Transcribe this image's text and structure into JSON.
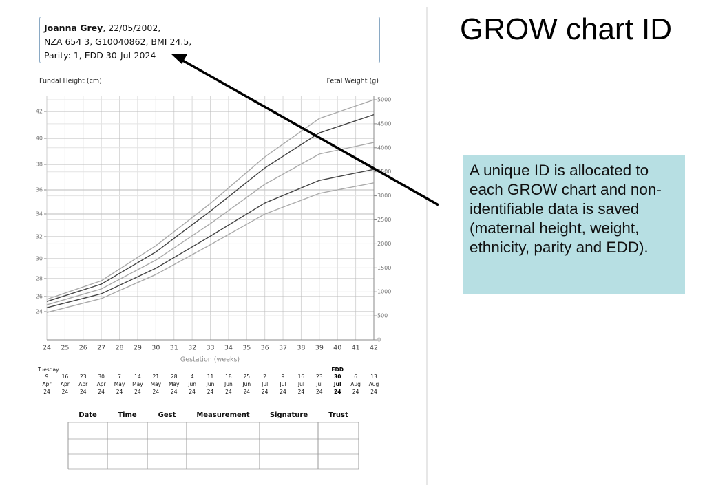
{
  "slide_title": "GROW chart ID",
  "patient": {
    "name": "Joanna Grey",
    "lines": [
      ", 22/05/2002,",
      "NZA 654 3, G10040862, BMI 24.5,",
      "Parity: 1, EDD 30-Jul-2024"
    ]
  },
  "callout": "A unique ID is allocated to each GROW chart and non-identifiable data is saved (maternal height, weight, ethnicity, parity and EDD).",
  "chart_data": {
    "type": "line",
    "ylabel": "Fundal Height (cm)",
    "y2label": "Fetal Weight (g)",
    "xlabel": "Gestation (weeks)",
    "x": [
      24,
      27,
      30,
      33,
      36,
      39,
      42
    ],
    "xlim": [
      24,
      42
    ],
    "xticks": [
      24,
      25,
      26,
      27,
      28,
      29,
      30,
      31,
      32,
      33,
      34,
      35,
      36,
      37,
      38,
      39,
      40,
      41,
      42
    ],
    "yticks": [
      24,
      26,
      28,
      30,
      32,
      34,
      36,
      38,
      40,
      42
    ],
    "y2lim": [
      0,
      5000
    ],
    "y2ticks": [
      0,
      500,
      1000,
      1500,
      2000,
      2500,
      3000,
      3500,
      4000,
      4500,
      5000
    ],
    "grid": true,
    "series": [
      {
        "color": "#aaaaaa",
        "axis": "y2",
        "values": [
          845,
          1230,
          1960,
          2840,
          3810,
          4610,
          5000
        ]
      },
      {
        "color": "#444444",
        "axis": "y2",
        "values": [
          800,
          1160,
          1830,
          2680,
          3580,
          4310,
          4690
        ]
      },
      {
        "color": "#aaaaaa",
        "axis": "y2",
        "values": [
          730,
          1060,
          1660,
          2420,
          3240,
          3870,
          4110
        ]
      },
      {
        "color": "#444444",
        "axis": "y2",
        "values": [
          670,
          960,
          1490,
          2160,
          2850,
          3320,
          3550
        ]
      },
      {
        "color": "#aaaaaa",
        "axis": "y2",
        "values": [
          570,
          860,
          1360,
          1980,
          2620,
          3050,
          3270
        ]
      }
    ],
    "date_caption": "Tuesday...",
    "dates": [
      {
        "day": "9",
        "month": "Apr",
        "year": "24"
      },
      {
        "day": "16",
        "month": "Apr",
        "year": "24"
      },
      {
        "day": "23",
        "month": "Apr",
        "year": "24"
      },
      {
        "day": "30",
        "month": "Apr",
        "year": "24"
      },
      {
        "day": "7",
        "month": "May",
        "year": "24"
      },
      {
        "day": "14",
        "month": "May",
        "year": "24"
      },
      {
        "day": "21",
        "month": "May",
        "year": "24"
      },
      {
        "day": "28",
        "month": "May",
        "year": "24"
      },
      {
        "day": "4",
        "month": "Jun",
        "year": "24"
      },
      {
        "day": "11",
        "month": "Jun",
        "year": "24"
      },
      {
        "day": "18",
        "month": "Jun",
        "year": "24"
      },
      {
        "day": "25",
        "month": "Jun",
        "year": "24"
      },
      {
        "day": "2",
        "month": "Jul",
        "year": "24"
      },
      {
        "day": "9",
        "month": "Jul",
        "year": "24"
      },
      {
        "day": "16",
        "month": "Jul",
        "year": "24"
      },
      {
        "day": "23",
        "month": "Jul",
        "year": "24"
      },
      {
        "day": "30",
        "month": "Jul",
        "year": "24",
        "label": "EDD"
      },
      {
        "day": "6",
        "month": "Aug",
        "year": "24"
      },
      {
        "day": "13",
        "month": "Aug",
        "year": "24"
      }
    ]
  },
  "table": {
    "columns": [
      "Date",
      "Time",
      "Gest",
      "Measurement",
      "Signature",
      "Trust"
    ]
  }
}
